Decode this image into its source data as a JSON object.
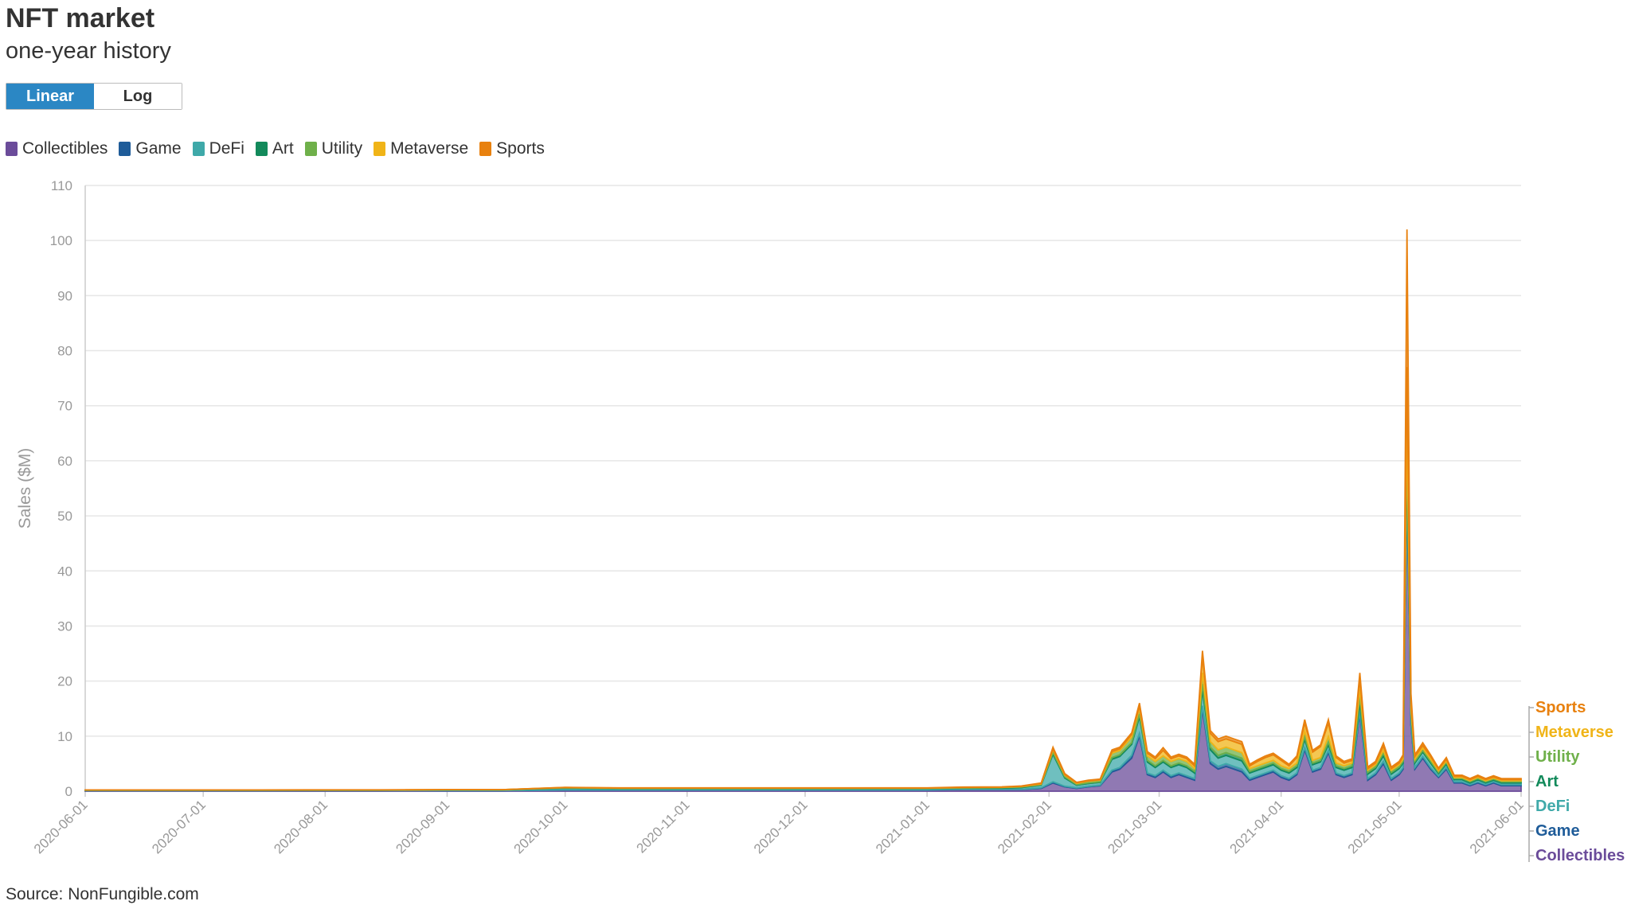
{
  "header": {
    "title": "NFT market",
    "subtitle": "one-year history"
  },
  "scale_toggle": {
    "options": [
      "Linear",
      "Log"
    ],
    "selected": "Linear"
  },
  "source": "Source: NonFungible.com",
  "colors": {
    "Collectibles": "#6b4c9a",
    "Game": "#1f5c99",
    "DeFi": "#3fa9a9",
    "Art": "#138a5b",
    "Utility": "#6fb04a",
    "Metaverse": "#f0b418",
    "Sports": "#e8810f"
  },
  "chart_data": {
    "type": "area",
    "stacked": true,
    "ylabel": "Sales ($M)",
    "xlabel": "",
    "ylim": [
      0,
      110
    ],
    "yticks": [
      0,
      10,
      20,
      30,
      40,
      50,
      60,
      70,
      80,
      90,
      100,
      110
    ],
    "xlim": [
      "2020-06-01",
      "2021-06-01"
    ],
    "xticks": [
      "2020-06-01",
      "2020-07-01",
      "2020-08-01",
      "2020-09-01",
      "2020-10-01",
      "2020-11-01",
      "2020-12-01",
      "2021-01-01",
      "2021-02-01",
      "2021-03-01",
      "2021-04-01",
      "2021-05-01",
      "2021-06-01"
    ],
    "grid": true,
    "legend_position": "top-left",
    "end_labels": [
      "Sports",
      "Metaverse",
      "Utility",
      "Art",
      "DeFi",
      "Game",
      "Collectibles"
    ],
    "x": [
      "2020-06-01",
      "2020-06-15",
      "2020-07-01",
      "2020-07-15",
      "2020-08-01",
      "2020-08-15",
      "2020-09-01",
      "2020-09-15",
      "2020-10-01",
      "2020-10-15",
      "2020-11-01",
      "2020-11-15",
      "2020-12-01",
      "2020-12-15",
      "2021-01-01",
      "2021-01-10",
      "2021-01-20",
      "2021-01-25",
      "2021-01-30",
      "2021-02-02",
      "2021-02-05",
      "2021-02-08",
      "2021-02-11",
      "2021-02-14",
      "2021-02-17",
      "2021-02-19",
      "2021-02-22",
      "2021-02-24",
      "2021-02-26",
      "2021-02-28",
      "2021-03-02",
      "2021-03-04",
      "2021-03-06",
      "2021-03-08",
      "2021-03-10",
      "2021-03-12",
      "2021-03-14",
      "2021-03-16",
      "2021-03-18",
      "2021-03-20",
      "2021-03-22",
      "2021-03-24",
      "2021-03-26",
      "2021-03-28",
      "2021-03-30",
      "2021-04-01",
      "2021-04-03",
      "2021-04-05",
      "2021-04-07",
      "2021-04-09",
      "2021-04-11",
      "2021-04-13",
      "2021-04-15",
      "2021-04-17",
      "2021-04-19",
      "2021-04-21",
      "2021-04-23",
      "2021-04-25",
      "2021-04-27",
      "2021-04-29",
      "2021-05-01",
      "2021-05-02",
      "2021-05-03",
      "2021-05-04",
      "2021-05-05",
      "2021-05-07",
      "2021-05-09",
      "2021-05-11",
      "2021-05-13",
      "2021-05-15",
      "2021-05-17",
      "2021-05-19",
      "2021-05-21",
      "2021-05-23",
      "2021-05-25",
      "2021-05-27",
      "2021-05-29",
      "2021-06-01"
    ],
    "series": [
      {
        "name": "Collectibles",
        "values": [
          0.1,
          0.1,
          0.1,
          0.1,
          0.1,
          0.1,
          0.1,
          0.1,
          0.2,
          0.2,
          0.2,
          0.2,
          0.2,
          0.2,
          0.2,
          0.3,
          0.3,
          0.3,
          0.5,
          1.5,
          0.8,
          0.5,
          0.8,
          1.0,
          3.5,
          4.0,
          6.0,
          10.0,
          3.0,
          2.5,
          3.5,
          2.5,
          3.0,
          2.5,
          2.0,
          15.0,
          5.0,
          4.0,
          4.5,
          4.0,
          3.5,
          2.0,
          2.5,
          3.0,
          3.5,
          2.5,
          2.0,
          3.0,
          7.5,
          3.5,
          4.0,
          7.0,
          3.0,
          2.5,
          3.0,
          14.0,
          2.0,
          3.0,
          5.0,
          2.0,
          3.0,
          4.0,
          55.0,
          12.0,
          4.0,
          6.0,
          4.0,
          2.5,
          4.0,
          1.5,
          1.5,
          1.0,
          1.5,
          1.0,
          1.5,
          1.0,
          1.0,
          1.0
        ]
      },
      {
        "name": "Game",
        "values": [
          0.02,
          0.02,
          0.02,
          0.02,
          0.03,
          0.03,
          0.03,
          0.03,
          0.05,
          0.05,
          0.05,
          0.05,
          0.05,
          0.05,
          0.05,
          0.05,
          0.05,
          0.05,
          0.1,
          0.2,
          0.1,
          0.1,
          0.1,
          0.1,
          0.3,
          0.3,
          0.5,
          0.5,
          0.3,
          0.3,
          0.3,
          0.3,
          0.3,
          0.3,
          0.3,
          0.5,
          0.5,
          0.5,
          0.5,
          0.5,
          0.5,
          0.3,
          0.3,
          0.3,
          0.3,
          0.3,
          0.3,
          0.3,
          0.4,
          0.3,
          0.3,
          0.4,
          0.3,
          0.3,
          0.3,
          0.5,
          0.3,
          0.3,
          0.4,
          0.3,
          0.3,
          0.3,
          1.0,
          0.4,
          0.3,
          0.3,
          0.3,
          0.2,
          0.3,
          0.2,
          0.2,
          0.2,
          0.2,
          0.2,
          0.2,
          0.2,
          0.2,
          0.2
        ]
      },
      {
        "name": "DeFi",
        "values": [
          0.05,
          0.05,
          0.05,
          0.05,
          0.05,
          0.05,
          0.1,
          0.1,
          0.3,
          0.2,
          0.2,
          0.2,
          0.2,
          0.2,
          0.2,
          0.2,
          0.2,
          0.3,
          0.5,
          5.0,
          1.5,
          0.5,
          0.5,
          0.5,
          2.0,
          2.0,
          2.0,
          3.0,
          2.0,
          1.5,
          1.5,
          1.5,
          1.5,
          1.5,
          1.0,
          3.0,
          2.0,
          1.5,
          1.5,
          1.5,
          1.5,
          1.0,
          1.0,
          1.0,
          1.0,
          1.0,
          1.0,
          1.0,
          1.5,
          1.0,
          1.0,
          1.0,
          1.0,
          1.0,
          1.0,
          1.5,
          0.8,
          0.8,
          1.0,
          0.8,
          0.8,
          0.8,
          4.0,
          1.5,
          0.8,
          0.8,
          0.8,
          0.5,
          0.6,
          0.4,
          0.4,
          0.3,
          0.4,
          0.3,
          0.3,
          0.3,
          0.3,
          0.3
        ]
      },
      {
        "name": "Art",
        "values": [
          0.02,
          0.02,
          0.02,
          0.02,
          0.02,
          0.02,
          0.02,
          0.02,
          0.05,
          0.05,
          0.05,
          0.05,
          0.05,
          0.05,
          0.05,
          0.05,
          0.1,
          0.1,
          0.1,
          0.3,
          0.2,
          0.1,
          0.1,
          0.1,
          0.3,
          0.3,
          0.3,
          0.5,
          0.3,
          0.3,
          0.3,
          0.3,
          0.3,
          0.3,
          0.3,
          1.0,
          0.5,
          0.5,
          0.5,
          0.5,
          0.5,
          0.3,
          0.3,
          0.3,
          0.3,
          0.3,
          0.3,
          0.3,
          0.5,
          0.3,
          0.3,
          0.5,
          0.3,
          0.3,
          0.3,
          1.0,
          0.3,
          0.3,
          0.5,
          0.3,
          0.3,
          0.3,
          3.0,
          0.5,
          0.3,
          0.3,
          0.3,
          0.2,
          0.3,
          0.2,
          0.2,
          0.2,
          0.2,
          0.2,
          0.2,
          0.2,
          0.2,
          0.2
        ]
      },
      {
        "name": "Utility",
        "values": [
          0.02,
          0.02,
          0.02,
          0.02,
          0.02,
          0.02,
          0.02,
          0.02,
          0.05,
          0.05,
          0.05,
          0.05,
          0.05,
          0.05,
          0.05,
          0.05,
          0.05,
          0.1,
          0.1,
          0.5,
          0.3,
          0.2,
          0.3,
          0.3,
          0.8,
          0.8,
          1.0,
          1.0,
          0.8,
          0.8,
          0.8,
          0.8,
          0.8,
          0.8,
          0.5,
          2.0,
          1.0,
          1.0,
          1.0,
          1.0,
          1.0,
          0.5,
          0.5,
          0.5,
          0.5,
          0.5,
          0.5,
          0.5,
          1.0,
          0.5,
          0.5,
          1.0,
          0.5,
          0.5,
          0.5,
          1.5,
          0.4,
          0.4,
          0.5,
          0.4,
          0.4,
          0.4,
          4.0,
          0.8,
          0.4,
          0.4,
          0.4,
          0.3,
          0.3,
          0.2,
          0.2,
          0.2,
          0.2,
          0.2,
          0.2,
          0.2,
          0.2,
          0.2
        ]
      },
      {
        "name": "Metaverse",
        "values": [
          0.01,
          0.01,
          0.01,
          0.01,
          0.01,
          0.01,
          0.01,
          0.01,
          0.03,
          0.03,
          0.03,
          0.03,
          0.03,
          0.03,
          0.03,
          0.05,
          0.05,
          0.05,
          0.1,
          0.2,
          0.1,
          0.1,
          0.1,
          0.1,
          0.3,
          0.3,
          0.5,
          0.5,
          0.5,
          0.5,
          1.0,
          0.5,
          0.5,
          0.5,
          0.5,
          3.0,
          1.5,
          1.5,
          1.5,
          1.5,
          1.5,
          0.5,
          0.8,
          1.0,
          1.0,
          1.0,
          0.5,
          1.0,
          1.5,
          1.5,
          2.0,
          2.5,
          1.0,
          0.5,
          0.5,
          2.0,
          0.3,
          0.3,
          0.8,
          0.3,
          0.3,
          0.5,
          10.0,
          1.5,
          0.5,
          0.5,
          0.5,
          0.3,
          0.3,
          0.2,
          0.2,
          0.2,
          0.2,
          0.2,
          0.2,
          0.2,
          0.2,
          0.2
        ]
      },
      {
        "name": "Sports",
        "values": [
          0.01,
          0.01,
          0.01,
          0.01,
          0.01,
          0.01,
          0.01,
          0.01,
          0.02,
          0.02,
          0.02,
          0.02,
          0.02,
          0.02,
          0.02,
          0.05,
          0.05,
          0.05,
          0.1,
          0.3,
          0.2,
          0.1,
          0.1,
          0.1,
          0.3,
          0.3,
          0.3,
          0.5,
          0.3,
          0.3,
          0.5,
          0.3,
          0.3,
          0.3,
          0.3,
          1.0,
          0.5,
          0.5,
          0.5,
          0.5,
          0.5,
          0.3,
          0.3,
          0.3,
          0.3,
          0.3,
          0.3,
          0.3,
          0.6,
          0.3,
          0.3,
          0.6,
          0.3,
          0.3,
          0.3,
          1.0,
          0.3,
          0.3,
          0.5,
          0.3,
          0.3,
          0.3,
          25.0,
          1.0,
          0.3,
          0.5,
          0.3,
          0.2,
          0.3,
          0.2,
          0.2,
          0.2,
          0.2,
          0.2,
          0.2,
          0.2,
          0.2,
          0.2
        ]
      }
    ]
  }
}
